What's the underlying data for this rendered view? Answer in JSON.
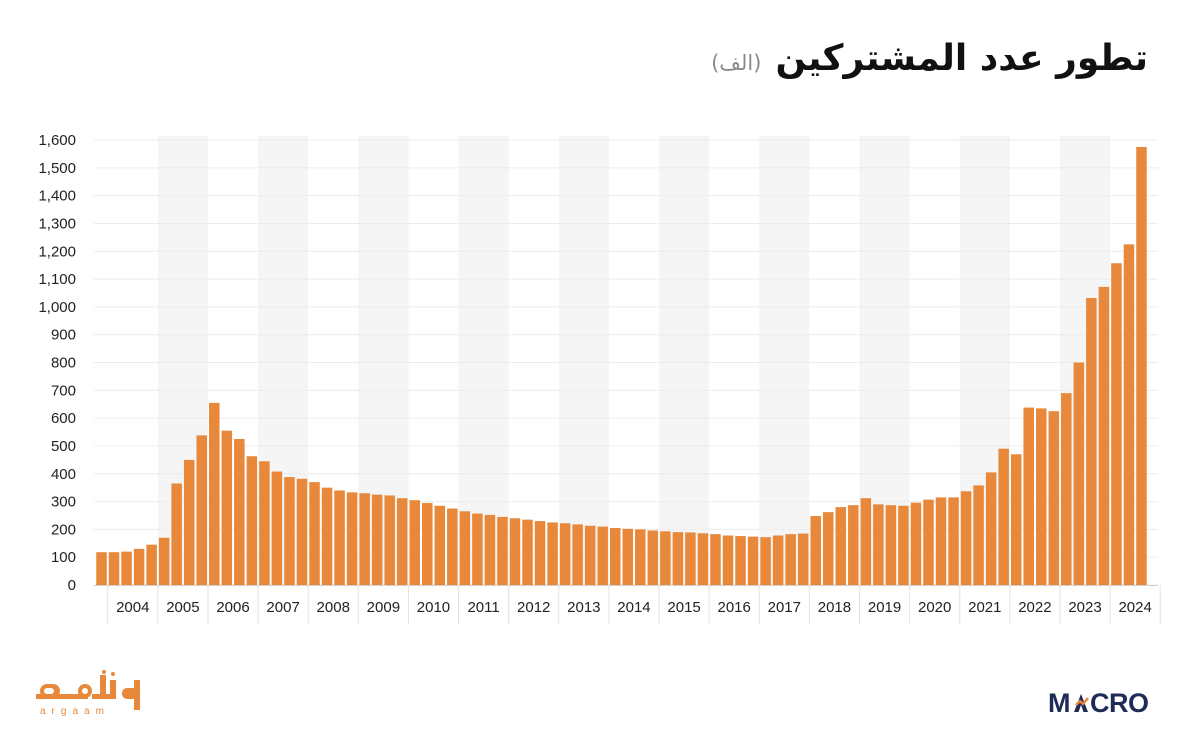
{
  "title": "تطور عدد المشتركين",
  "unit": "(الف)",
  "brand": {
    "left_logo": "أرقام",
    "left_logo_sub": "argaam",
    "right_logo": "MACRO",
    "accent": "#E8883A",
    "navy": "#1E2B57"
  },
  "chart_data": {
    "type": "bar",
    "title": "تطور عدد المشتركين",
    "unit": "(الف)",
    "xlabel": "",
    "ylabel": "",
    "ylim": [
      0,
      1600
    ],
    "yticks": [
      0,
      100,
      200,
      300,
      400,
      500,
      600,
      700,
      800,
      900,
      1000,
      1100,
      1200,
      1300,
      1400,
      1500,
      1600
    ],
    "ytick_labels": [
      "0",
      "100",
      "200",
      "300",
      "400",
      "500",
      "600",
      "700",
      "800",
      "900",
      "1,000",
      "1,100",
      "1,200",
      "1,300",
      "1,400",
      "1,500",
      "1,600"
    ],
    "years": [
      "2004",
      "2005",
      "2006",
      "2007",
      "2008",
      "2009",
      "2010",
      "2011",
      "2012",
      "2013",
      "2014",
      "2015",
      "2016",
      "2017",
      "2018",
      "2019",
      "2020",
      "2021",
      "2022",
      "2023",
      "2024"
    ],
    "bars_per_year": 4,
    "grid": true,
    "alternating_year_bands": true,
    "bar_color": "#E8883A",
    "values": [
      118,
      118,
      120,
      130,
      145,
      170,
      365,
      450,
      538,
      655,
      555,
      525,
      463,
      445,
      408,
      388,
      382,
      370,
      350,
      340,
      333,
      330,
      325,
      322,
      312,
      305,
      295,
      285,
      275,
      265,
      257,
      252,
      245,
      240,
      235,
      230,
      225,
      222,
      218,
      213,
      210,
      205,
      202,
      200,
      196,
      193,
      190,
      189,
      186,
      183,
      178,
      176,
      174,
      172,
      178,
      183,
      185,
      248,
      262,
      280,
      287,
      312,
      290,
      287,
      285,
      296,
      307,
      315,
      315,
      337,
      358,
      405,
      490,
      470,
      638,
      635,
      625,
      690,
      800,
      1032,
      1072,
      1157,
      1225,
      1575
    ]
  }
}
